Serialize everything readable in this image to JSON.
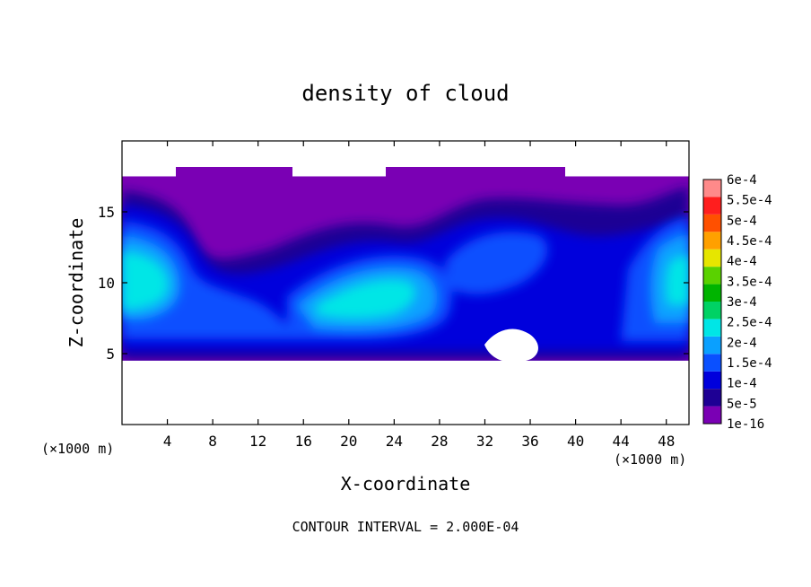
{
  "chart_data": {
    "type": "heatmap",
    "title": "density of cloud",
    "xlabel": "X-coordinate",
    "ylabel": "Z-coordinate",
    "x_unit": "(×1000 m)",
    "y_unit": "(×1000 m)",
    "xlim": [
      0,
      50
    ],
    "ylim": [
      0,
      20
    ],
    "x_ticks": [
      4,
      8,
      12,
      16,
      20,
      24,
      28,
      32,
      36,
      40,
      44,
      48
    ],
    "y_ticks": [
      5,
      10,
      15
    ],
    "footer": "CONTOUR INTERVAL = 2.000E-04",
    "colorbar": {
      "levels": [
        "1e-16",
        "5e-5",
        "1e-4",
        "1.5e-4",
        "2e-4",
        "2.5e-4",
        "3e-4",
        "3.5e-4",
        "4e-4",
        "4.5e-4",
        "5e-4",
        "5.5e-4",
        "6e-4"
      ],
      "colors": [
        "#7a00b4",
        "#1e0094",
        "#0000dc",
        "#0a50ff",
        "#0aa0ff",
        "#00e6e6",
        "#00d264",
        "#00b400",
        "#5ad200",
        "#e6e600",
        "#ffa000",
        "#ff5000",
        "#ff1e1e",
        "#ff8a8a"
      ]
    },
    "cloud_layer": {
      "base_km": 4.5,
      "top_km": 17.5
    }
  }
}
